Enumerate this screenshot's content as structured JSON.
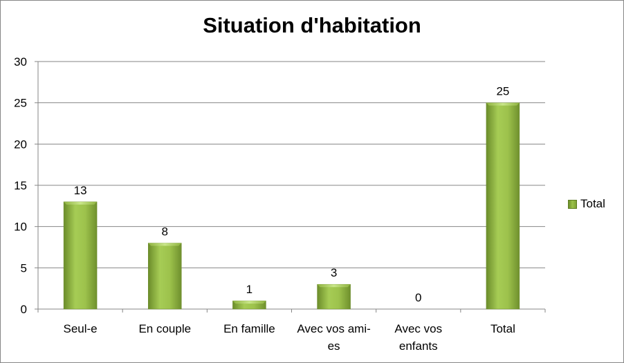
{
  "chart_data": {
    "type": "bar",
    "title": "Situation d'habitation",
    "categories": [
      [
        "Seul-e"
      ],
      [
        "En couple"
      ],
      [
        "En famille"
      ],
      [
        "Avec vos ami-",
        "es"
      ],
      [
        "Avec vos",
        "enfants"
      ],
      [
        "Total"
      ]
    ],
    "series": [
      {
        "name": "Total",
        "values": [
          13,
          8,
          1,
          3,
          0,
          25
        ]
      }
    ],
    "data_labels": [
      "13",
      "8",
      "1",
      "3",
      "0",
      "25"
    ],
    "xlabel": "",
    "ylabel": "",
    "ylim": [
      0,
      30
    ],
    "yticks": [
      0,
      5,
      10,
      15,
      20,
      25,
      30
    ],
    "grid": true,
    "legend_position": "right",
    "bar_color": "#9bbb59"
  }
}
